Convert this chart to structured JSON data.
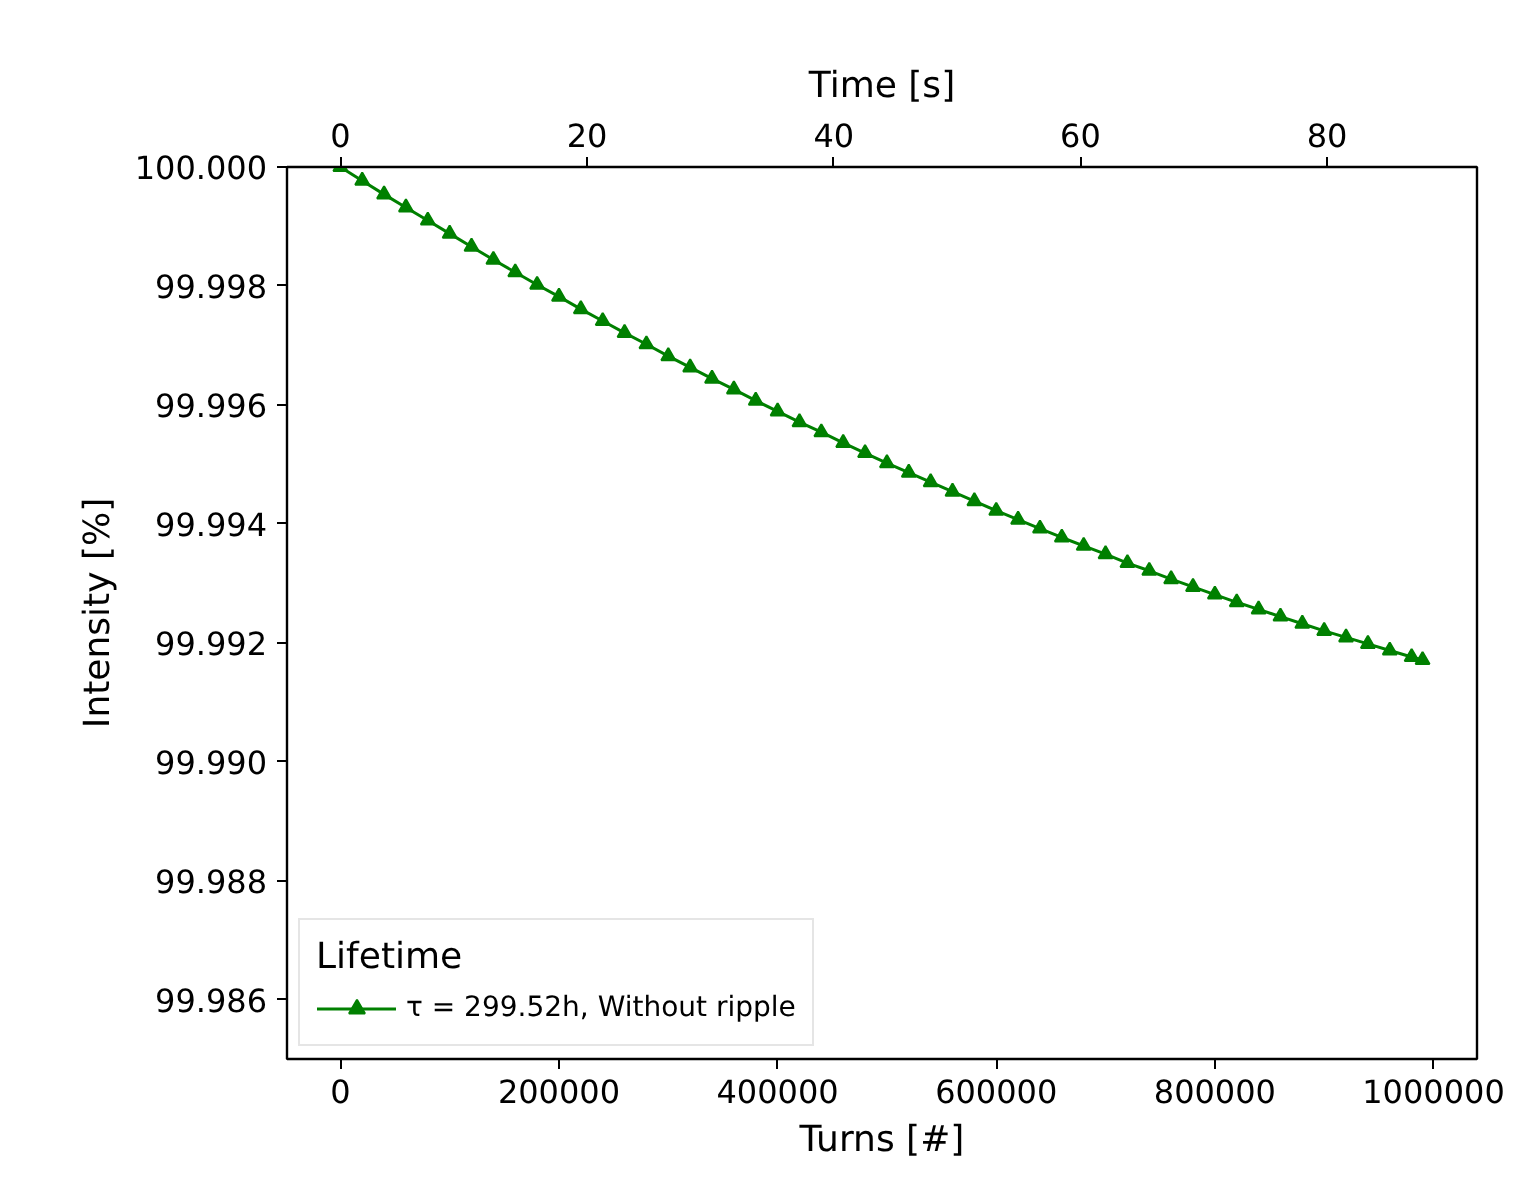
{
  "chart_data": {
    "type": "line",
    "xlabel": "Turns [#]",
    "ylabel": "Intensity [%]",
    "x2label": "Time [s]",
    "legend_title": "Lifetime",
    "x": [
      0,
      20000,
      40000,
      60000,
      80000,
      100000,
      120000,
      140000,
      160000,
      180000,
      200000,
      220000,
      240000,
      260000,
      280000,
      300000,
      320000,
      340000,
      360000,
      380000,
      400000,
      420000,
      440000,
      460000,
      480000,
      500000,
      520000,
      540000,
      560000,
      580000,
      600000,
      620000,
      640000,
      660000,
      680000,
      700000,
      720000,
      740000,
      760000,
      780000,
      800000,
      820000,
      840000,
      860000,
      880000,
      900000,
      920000,
      940000,
      960000,
      980000,
      990000
    ],
    "series": [
      {
        "name": "τ = 299.52h, Without ripple",
        "color": "#008000",
        "values": [
          100.0,
          99.99977,
          99.99954,
          99.99932,
          99.9991,
          99.99888,
          99.99866,
          99.99844,
          99.99823,
          99.99802,
          99.99782,
          99.99761,
          99.99741,
          99.99721,
          99.99702,
          99.99682,
          99.99663,
          99.99644,
          99.99626,
          99.99607,
          99.99589,
          99.99571,
          99.99554,
          99.99536,
          99.99519,
          99.99502,
          99.99486,
          99.9947,
          99.99454,
          99.99438,
          99.99422,
          99.99407,
          99.99392,
          99.99377,
          99.99363,
          99.99349,
          99.99334,
          99.99321,
          99.99307,
          99.99294,
          99.99281,
          99.99268,
          99.99256,
          99.99244,
          99.99232,
          99.9922,
          99.99209,
          99.99198,
          99.99187,
          99.99176,
          99.99171
        ]
      }
    ],
    "xlim": [
      -48800,
      1039800
    ],
    "xticks": [
      0,
      200000,
      400000,
      600000,
      800000,
      1000000
    ],
    "x2lim": [
      -4.33,
      92.15
    ],
    "x2ticks": [
      0,
      20,
      40,
      60,
      80
    ],
    "ylim": [
      99.985,
      100.0
    ],
    "yticks": [
      {
        "value": 99.986,
        "label": "99.986"
      },
      {
        "value": 99.988,
        "label": "99.988"
      },
      {
        "value": 99.99,
        "label": "99.990"
      },
      {
        "value": 99.992,
        "label": "99.992"
      },
      {
        "value": 99.994,
        "label": "99.994"
      },
      {
        "value": 99.996,
        "label": "99.996"
      },
      {
        "value": 99.998,
        "label": "99.998"
      },
      {
        "value": 100.0,
        "label": "100.000"
      }
    ],
    "legend": "bottom left",
    "marker": "triangle",
    "line_style": "solid",
    "grid": false
  }
}
